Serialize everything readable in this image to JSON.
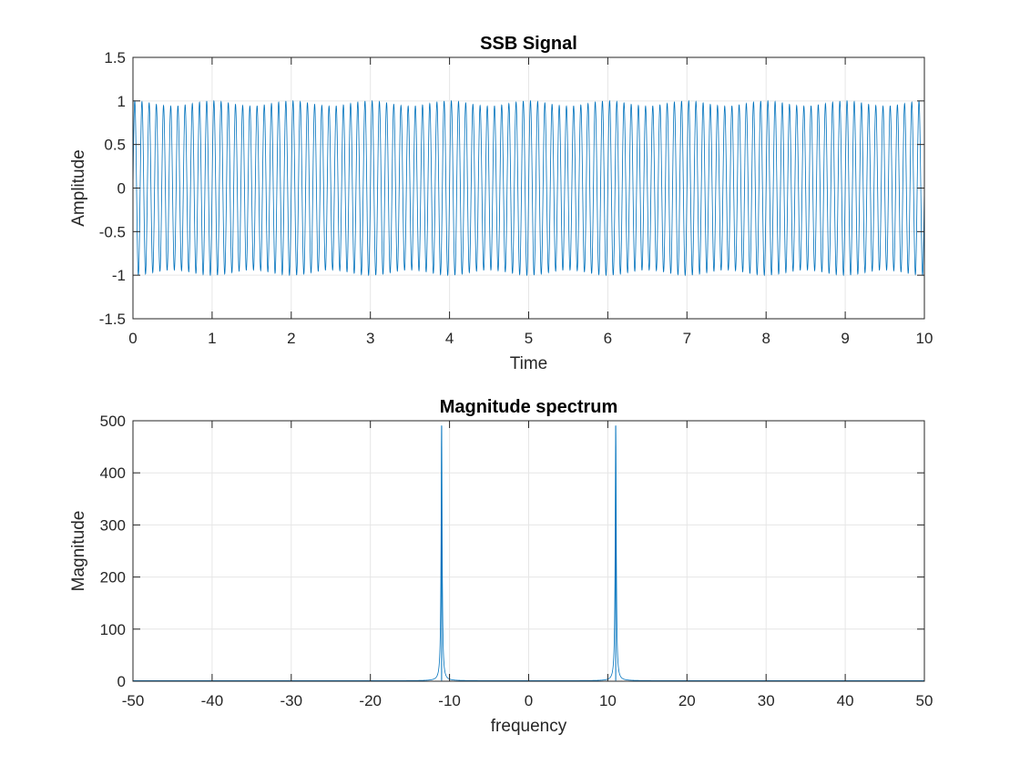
{
  "chart_data": [
    {
      "type": "line",
      "title": "SSB Signal",
      "xlabel": "Time",
      "ylabel": "Amplitude",
      "xlim": [
        0,
        10
      ],
      "ylim": [
        -1.5,
        1.5
      ],
      "xticks": [
        "0",
        "1",
        "2",
        "3",
        "4",
        "5",
        "6",
        "7",
        "8",
        "9",
        "10"
      ],
      "yticks": [
        "-1.5",
        "-1",
        "-0.5",
        "0",
        "0.5",
        "1",
        "1.5"
      ],
      "grid": true,
      "series": [
        {
          "color": "#0072BD",
          "signal": {
            "carrier_hz": 11,
            "envelope_min": 0.94,
            "envelope_max": 1.0,
            "envelope_hz": 1.0,
            "t_start": 0,
            "t_end": 10
          }
        }
      ]
    },
    {
      "type": "line",
      "title": "Magnitude spectrum",
      "xlabel": "frequency",
      "ylabel": "Magnitude",
      "xlim": [
        -50,
        50
      ],
      "ylim": [
        0,
        500
      ],
      "xticks": [
        "-50",
        "-40",
        "-30",
        "-20",
        "-10",
        "0",
        "10",
        "20",
        "30",
        "40",
        "50"
      ],
      "yticks": [
        "0",
        "100",
        "200",
        "300",
        "400",
        "500"
      ],
      "grid": true,
      "series": [
        {
          "color": "#0072BD",
          "peaks": [
            {
              "x": -11,
              "y": 490
            },
            {
              "x": 11,
              "y": 490
            }
          ],
          "baseline": 1
        }
      ]
    }
  ]
}
